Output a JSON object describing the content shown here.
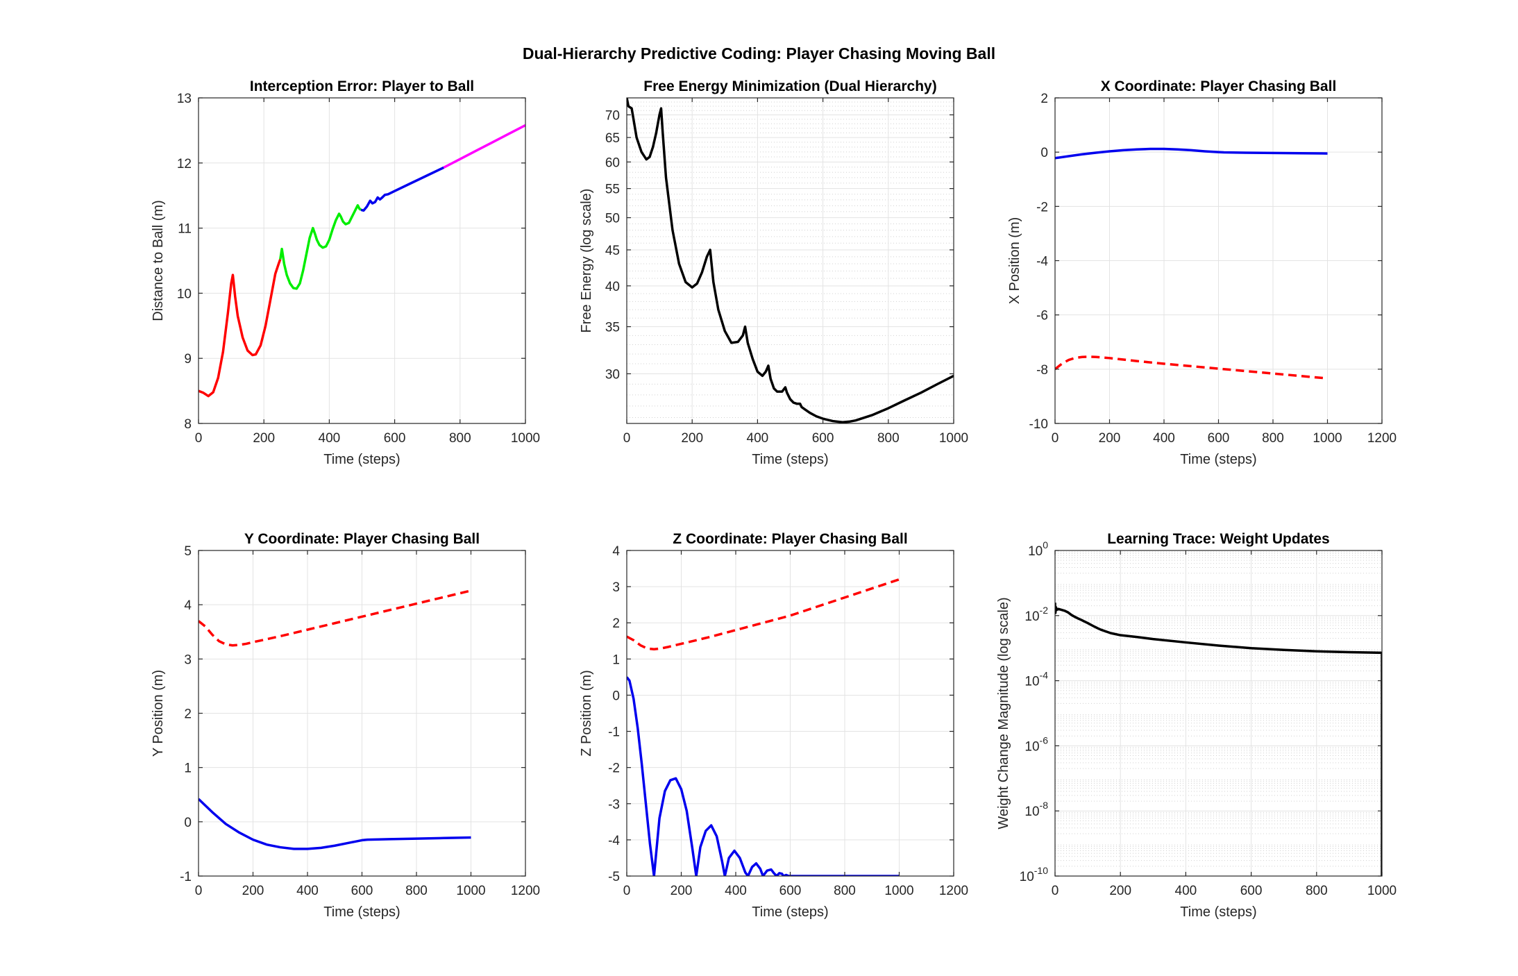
{
  "figure": {
    "title": "Dual-Hierarchy Predictive Coding: Player Chasing Moving Ball"
  },
  "colors": {
    "red": "#ff0000",
    "green": "#00ee00",
    "blue": "#0000ee",
    "magenta": "#ff00ff",
    "black": "#000000",
    "grid": "#e3e3e3",
    "axis": "#262626"
  },
  "chart_data": [
    {
      "id": "interception",
      "type": "line",
      "title": "Interception Error: Player to Ball",
      "xlabel": "Time (steps)",
      "ylabel": "Distance to Ball (m)",
      "xlim": [
        0,
        1000
      ],
      "ylim": [
        8,
        13
      ],
      "xticks": [
        0,
        200,
        400,
        600,
        800,
        1000
      ],
      "yticks": [
        8,
        9,
        10,
        11,
        12,
        13
      ],
      "yscale": "linear",
      "grid": true,
      "series": [
        {
          "color": "red",
          "style": "solid",
          "x": [
            0,
            15,
            30,
            45,
            60,
            75,
            90,
            100,
            105,
            112,
            120,
            135,
            150,
            165,
            175,
            190,
            205,
            220,
            235,
            245,
            250
          ],
          "y": [
            8.5,
            8.47,
            8.42,
            8.48,
            8.7,
            9.1,
            9.7,
            10.15,
            10.28,
            9.95,
            9.65,
            9.32,
            9.12,
            9.05,
            9.06,
            9.2,
            9.5,
            9.9,
            10.3,
            10.45,
            10.52
          ]
        },
        {
          "color": "green",
          "style": "solid",
          "x": [
            250,
            255,
            262,
            270,
            280,
            290,
            300,
            310,
            320,
            330,
            340,
            350,
            357,
            362,
            370,
            380,
            390,
            400,
            410,
            420,
            430,
            435,
            442,
            450,
            460,
            470,
            480,
            487,
            492,
            497
          ],
          "y": [
            10.52,
            10.68,
            10.45,
            10.28,
            10.15,
            10.08,
            10.07,
            10.15,
            10.35,
            10.6,
            10.85,
            11.0,
            10.9,
            10.82,
            10.74,
            10.7,
            10.72,
            10.82,
            10.98,
            11.12,
            11.22,
            11.18,
            11.1,
            11.06,
            11.08,
            11.18,
            11.28,
            11.35,
            11.3,
            11.28
          ]
        },
        {
          "color": "blue",
          "style": "solid",
          "x": [
            497,
            505,
            515,
            525,
            532,
            540,
            548,
            555,
            562,
            570,
            580,
            600,
            650,
            700,
            750
          ],
          "y": [
            11.28,
            11.27,
            11.33,
            11.42,
            11.38,
            11.4,
            11.47,
            11.44,
            11.47,
            11.51,
            11.52,
            11.57,
            11.69,
            11.81,
            11.93
          ]
        },
        {
          "color": "magenta",
          "style": "solid",
          "x": [
            750,
            800,
            850,
            900,
            950,
            1000
          ],
          "y": [
            11.93,
            12.06,
            12.19,
            12.32,
            12.45,
            12.58
          ]
        }
      ]
    },
    {
      "id": "freeenergy",
      "type": "line",
      "title": "Free Energy Minimization (Dual Hierarchy)",
      "xlabel": "Time (steps)",
      "ylabel": "Free Energy (log scale)",
      "xlim": [
        0,
        1000
      ],
      "ylim": [
        25.5,
        74
      ],
      "xticks": [
        0,
        200,
        400,
        600,
        800,
        1000
      ],
      "yticks": [
        30,
        35,
        40,
        45,
        50,
        55,
        60,
        65,
        70
      ],
      "yscale": "log",
      "grid": true,
      "series": [
        {
          "color": "black",
          "style": "solid",
          "x": [
            0,
            5,
            15,
            30,
            45,
            60,
            70,
            80,
            90,
            100,
            105,
            110,
            120,
            140,
            160,
            180,
            200,
            215,
            230,
            245,
            255,
            265,
            280,
            300,
            320,
            340,
            355,
            362,
            370,
            385,
            400,
            415,
            425,
            433,
            440,
            450,
            460,
            475,
            485,
            490,
            500,
            510,
            520,
            530,
            535,
            545,
            560,
            580,
            600,
            630,
            660,
            680,
            700,
            750,
            800,
            850,
            900,
            950,
            1000
          ],
          "y": [
            74,
            72,
            71.5,
            65,
            62,
            60.5,
            61,
            63,
            66,
            70,
            71.5,
            66,
            57,
            48,
            43,
            40.5,
            39.8,
            40.3,
            41.8,
            44,
            45,
            40.5,
            37,
            34.5,
            33.2,
            33.3,
            34,
            35,
            33.2,
            31.5,
            30.2,
            29.8,
            30.2,
            30.8,
            29.5,
            28.6,
            28.3,
            28.3,
            28.7,
            28.2,
            27.6,
            27.3,
            27.2,
            27.2,
            26.9,
            26.7,
            26.4,
            26.1,
            25.9,
            25.7,
            25.6,
            25.65,
            25.75,
            26.2,
            26.8,
            27.5,
            28.2,
            29.0,
            29.8
          ]
        }
      ]
    },
    {
      "id": "xcoord",
      "type": "line",
      "title": "X Coordinate: Player Chasing Ball",
      "xlabel": "Time (steps)",
      "ylabel": "X Position (m)",
      "xlim": [
        0,
        1200
      ],
      "ylim": [
        -10,
        2
      ],
      "xticks": [
        0,
        200,
        400,
        600,
        800,
        1000,
        1200
      ],
      "yticks": [
        -10,
        -8,
        -6,
        -4,
        -2,
        0,
        2
      ],
      "yscale": "linear",
      "grid": true,
      "series": [
        {
          "color": "blue",
          "style": "solid",
          "x": [
            0,
            50,
            100,
            150,
            200,
            250,
            300,
            350,
            400,
            450,
            500,
            550,
            600,
            620,
            700,
            800,
            900,
            1000
          ],
          "y": [
            -0.22,
            -0.15,
            -0.08,
            -0.02,
            0.03,
            0.07,
            0.1,
            0.12,
            0.12,
            0.1,
            0.07,
            0.03,
            0.0,
            -0.01,
            -0.02,
            -0.03,
            -0.04,
            -0.05
          ]
        },
        {
          "color": "red",
          "style": "dashed",
          "x": [
            0,
            25,
            50,
            75,
            100,
            125,
            150,
            200,
            300,
            400,
            500,
            600,
            700,
            800,
            900,
            1000
          ],
          "y": [
            -8.0,
            -7.8,
            -7.66,
            -7.58,
            -7.55,
            -7.54,
            -7.55,
            -7.59,
            -7.7,
            -7.8,
            -7.89,
            -7.98,
            -8.07,
            -8.16,
            -8.25,
            -8.34
          ]
        }
      ]
    },
    {
      "id": "ycoord",
      "type": "line",
      "title": "Y Coordinate: Player Chasing Ball",
      "xlabel": "Time (steps)",
      "ylabel": "Y Position (m)",
      "xlim": [
        0,
        1200
      ],
      "ylim": [
        -1,
        5
      ],
      "xticks": [
        0,
        200,
        400,
        600,
        800,
        1000,
        1200
      ],
      "yticks": [
        -1,
        0,
        1,
        2,
        3,
        4,
        5
      ],
      "yscale": "linear",
      "grid": true,
      "series": [
        {
          "color": "red",
          "style": "dashed",
          "x": [
            0,
            25,
            50,
            75,
            100,
            125,
            150,
            175,
            200,
            300,
            400,
            500,
            600,
            700,
            800,
            900,
            1000
          ],
          "y": [
            3.7,
            3.6,
            3.45,
            3.33,
            3.27,
            3.25,
            3.26,
            3.28,
            3.31,
            3.42,
            3.54,
            3.66,
            3.78,
            3.9,
            4.02,
            4.14,
            4.26
          ]
        },
        {
          "color": "blue",
          "style": "solid",
          "x": [
            0,
            50,
            100,
            150,
            200,
            250,
            300,
            350,
            400,
            450,
            500,
            550,
            600,
            620,
            700,
            800,
            900,
            1000
          ],
          "y": [
            0.42,
            0.18,
            -0.04,
            -0.2,
            -0.33,
            -0.42,
            -0.47,
            -0.5,
            -0.5,
            -0.48,
            -0.44,
            -0.39,
            -0.34,
            -0.33,
            -0.32,
            -0.31,
            -0.3,
            -0.29
          ]
        }
      ]
    },
    {
      "id": "zcoord",
      "type": "line",
      "title": "Z Coordinate: Player Chasing Ball",
      "xlabel": "Time (steps)",
      "ylabel": "Z Position (m)",
      "xlim": [
        0,
        1200
      ],
      "ylim": [
        -5,
        4
      ],
      "xticks": [
        0,
        200,
        400,
        600,
        800,
        1000,
        1200
      ],
      "yticks": [
        -5,
        -4,
        -3,
        -2,
        -1,
        0,
        1,
        2,
        3,
        4
      ],
      "yscale": "linear",
      "grid": true,
      "series": [
        {
          "color": "red",
          "style": "dashed",
          "x": [
            0,
            25,
            50,
            75,
            100,
            125,
            150,
            200,
            300,
            400,
            500,
            600,
            700,
            800,
            900,
            1000
          ],
          "y": [
            1.62,
            1.52,
            1.38,
            1.29,
            1.27,
            1.29,
            1.33,
            1.42,
            1.6,
            1.8,
            2.0,
            2.2,
            2.45,
            2.7,
            2.95,
            3.2
          ]
        },
        {
          "color": "blue",
          "style": "solid",
          "x": [
            0,
            10,
            25,
            40,
            55,
            70,
            85,
            100,
            105,
            120,
            140,
            160,
            180,
            200,
            220,
            240,
            255,
            270,
            290,
            310,
            330,
            350,
            360,
            375,
            395,
            415,
            435,
            445,
            460,
            475,
            490,
            500,
            515,
            530,
            540,
            550,
            560,
            570,
            575,
            585,
            595,
            605,
            1000
          ],
          "y": [
            0.5,
            0.4,
            -0.1,
            -0.9,
            -1.9,
            -3.0,
            -4.1,
            -5.0,
            -4.6,
            -3.4,
            -2.65,
            -2.35,
            -2.3,
            -2.6,
            -3.2,
            -4.2,
            -5.0,
            -4.2,
            -3.75,
            -3.6,
            -3.9,
            -4.6,
            -5.0,
            -4.5,
            -4.3,
            -4.5,
            -4.9,
            -5.0,
            -4.75,
            -4.65,
            -4.8,
            -5.0,
            -4.85,
            -4.82,
            -4.92,
            -5.0,
            -4.92,
            -4.94,
            -5.0,
            -4.97,
            -5.0,
            -5.0,
            -5.0
          ]
        }
      ]
    },
    {
      "id": "learning",
      "type": "line",
      "title": "Learning Trace: Weight Updates",
      "xlabel": "Time (steps)",
      "ylabel": "Weight Change Magnitude (log scale)",
      "xlim": [
        0,
        1000
      ],
      "ylim": [
        1e-10,
        1
      ],
      "xticks": [
        0,
        200,
        400,
        600,
        800,
        1000
      ],
      "yticks": [
        -10,
        -8,
        -6,
        -4,
        -2,
        0
      ],
      "ytick_labels": [
        {
          "base": "10",
          "exp": "-10"
        },
        {
          "base": "10",
          "exp": "-8"
        },
        {
          "base": "10",
          "exp": "-6"
        },
        {
          "base": "10",
          "exp": "-4"
        },
        {
          "base": "10",
          "exp": "-2"
        },
        {
          "base": "10",
          "exp": "0"
        }
      ],
      "yscale": "log",
      "grid": true,
      "series": [
        {
          "color": "black",
          "style": "solid",
          "x": [
            0,
            1,
            3,
            5,
            10,
            20,
            30,
            40,
            50,
            60,
            70,
            80,
            90,
            100,
            110,
            120,
            130,
            140,
            150,
            170,
            200,
            250,
            300,
            400,
            500,
            600,
            700,
            800,
            900,
            1000,
            1000
          ],
          "y": [
            0.025,
            0.012,
            0.018,
            0.015,
            0.016,
            0.015,
            0.014,
            0.0125,
            0.0105,
            0.0092,
            0.0082,
            0.0074,
            0.0066,
            0.0059,
            0.0052,
            0.0046,
            0.0041,
            0.0037,
            0.0034,
            0.0029,
            0.0025,
            0.0022,
            0.0019,
            0.0015,
            0.0012,
            0.001,
            0.00088,
            0.0008,
            0.00075,
            0.00072,
            1e-10
          ]
        }
      ]
    }
  ]
}
